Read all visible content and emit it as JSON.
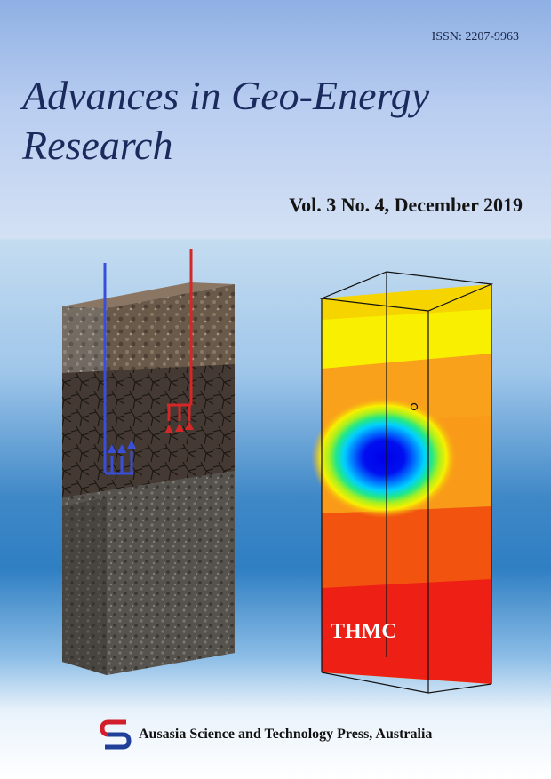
{
  "issn": "ISSN: 2207-9963",
  "title": "Advances in Geo-Energy Research",
  "issue": "Vol. 3 No. 4, December 2019",
  "figure": {
    "label": "THMC"
  },
  "publisher": {
    "name": "Ausasia Science and Technology Press, Australia"
  },
  "colors": {
    "title": "#1b2a5c",
    "logo_red": "#d21e2b",
    "logo_blue": "#1f3f99"
  }
}
